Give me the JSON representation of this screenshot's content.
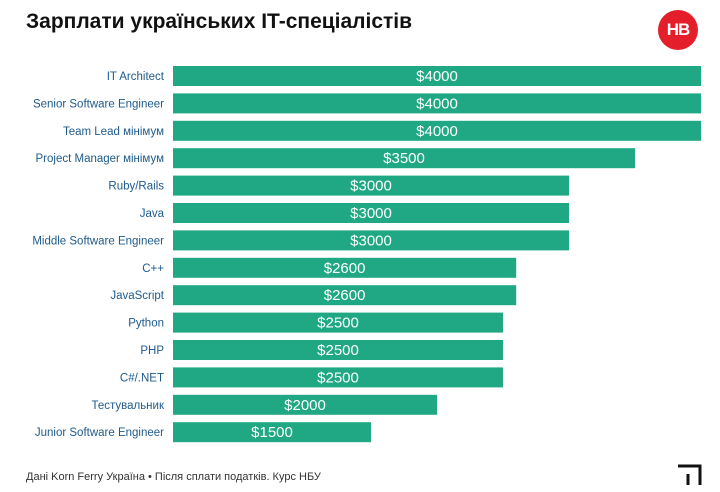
{
  "header": {
    "title": "Зарплати українських IT-спеціалістів",
    "logo_text": "НВ"
  },
  "footer": {
    "source": "Дані Korn Ferry Україна • Після сплати податків. Курс НБУ"
  },
  "colors": {
    "bar": "#1fa883",
    "category_label": "#1f5a8c",
    "logo_bg": "#e41e2b"
  },
  "icons": {
    "corner": "corner-bracket-icon"
  },
  "chart_data": {
    "type": "bar",
    "orientation": "horizontal",
    "title": "Зарплати українських IT-спеціалістів",
    "categories": [
      "IT Architect",
      "Senior Software Engineer",
      "Team Lead мінімум",
      "Project Manager мінімум",
      "Ruby/Rails",
      "Java",
      "Middle Software Engineer",
      "C++",
      "JavaScript",
      "Python",
      "PHP",
      "C#/.NET",
      "Тестувальник",
      "Junior Software Engineer"
    ],
    "values": [
      4000,
      4000,
      4000,
      3500,
      3000,
      3000,
      3000,
      2600,
      2600,
      2500,
      2500,
      2500,
      2000,
      1500
    ],
    "value_labels": [
      "$4000",
      "$4000",
      "$4000",
      "$3500",
      "$3000",
      "$3000",
      "$3000",
      "$2600",
      "$2600",
      "$2500",
      "$2500",
      "$2500",
      "$2000",
      "$1500"
    ],
    "xlim": [
      0,
      4000
    ],
    "grid": false,
    "legend": "none"
  }
}
